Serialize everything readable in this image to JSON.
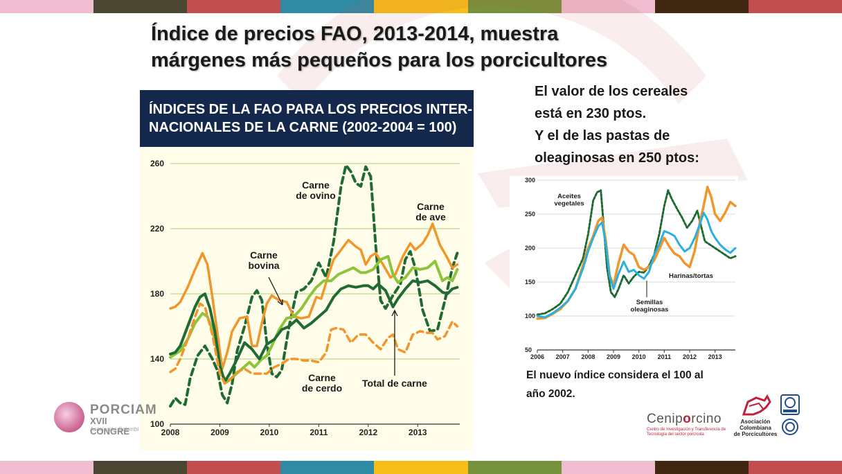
{
  "slide": {
    "title_line1": "Índice de precios FAO, 2013-2014, muestra",
    "title_line2": "márgenes más pequeños para los porcicultores",
    "side_text": [
      "El valor de los cereales",
      "está en 230 ptos.",
      "Y el de las pastas de",
      "oleaginosas en 250 ptos:"
    ],
    "note_line1": "El nuevo índice considera el 100 al",
    "note_line2": "año 2002.",
    "stripe_colors": [
      "#efbdd0",
      "#4b4732",
      "#c24e50",
      "#2f8ba3",
      "#f7be1a",
      "#76923c",
      "#efbdd0",
      "#3f2712",
      "#c24e50"
    ],
    "logos": {
      "porciamer_name": "PORCIAM",
      "porciamer_sub1": "XVII CONGRE",
      "porciamer_sub2": "Asociación Colombi",
      "ceniporcino_prefix": "Cenip",
      "ceniporcino_dot": "o",
      "ceniporcino_suffix": "rcino",
      "ceniporcino_sub": "Centro de Investigación y Transferencia de Tecnología del sector porcícola",
      "acp_line1": "Asociación",
      "acp_line2": "Colombiana",
      "acp_line3": "de Porcicultores"
    }
  },
  "chart_data": [
    {
      "type": "line",
      "title": "ÍNDICES DE LA FAO PARA LOS PRECIOS INTERNACIONALES DE LA CARNE (2002-2004 = 100)",
      "title_lines": [
        "ÍNDICES DE LA FAO PARA LOS PRECIOS INTER-",
        "NACIONALES DE LA CARNE (2002-2004 = 100)"
      ],
      "xlim": [
        2008,
        2013.85
      ],
      "ylim": [
        100,
        260
      ],
      "xticks": [
        "2008",
        "2009",
        "2010",
        "2011",
        "2012",
        "2013"
      ],
      "yticks": [
        100,
        140,
        180,
        220,
        260
      ],
      "grid": true,
      "colors": {
        "ovino": "#1f6b33",
        "ave": "#f0962a",
        "bovina": "#8cc43c",
        "total": "#1f6b33",
        "cerdo": "#f0962a"
      },
      "series": [
        {
          "name": "Carne de ovino",
          "label_lines": [
            "Carne",
            "de ovino"
          ],
          "style": "dashed-dark-green",
          "x": [
            2008.0,
            2008.1,
            2008.2,
            2008.3,
            2008.4,
            2008.55,
            2008.7,
            2008.85,
            2008.95,
            2009.05,
            2009.15,
            2009.25,
            2009.35,
            2009.5,
            2009.65,
            2009.75,
            2009.85,
            2009.95,
            2010.05,
            2010.15,
            2010.25,
            2010.4,
            2010.55,
            2010.7,
            2010.85,
            2011.0,
            2011.15,
            2011.3,
            2011.45,
            2011.55,
            2011.65,
            2011.75,
            2011.85,
            2011.95,
            2012.05,
            2012.15,
            2012.25,
            2012.35,
            2012.5,
            2012.65,
            2012.75,
            2012.85,
            2012.95,
            2013.1,
            2013.25,
            2013.4,
            2013.55,
            2013.7,
            2013.8
          ],
          "y": [
            111,
            116,
            113,
            112,
            128,
            142,
            148,
            140,
            133,
            118,
            113,
            125,
            145,
            160,
            178,
            182,
            176,
            150,
            131,
            129,
            133,
            160,
            181,
            183,
            188,
            199,
            190,
            212,
            246,
            259,
            255,
            248,
            246,
            258,
            252,
            210,
            176,
            171,
            179,
            186,
            201,
            206,
            196,
            170,
            157,
            158,
            176,
            196,
            205
          ]
        },
        {
          "name": "Carne de ave",
          "label_lines": [
            "Carne",
            "de ave"
          ],
          "style": "solid-orange",
          "x": [
            2008.0,
            2008.1,
            2008.2,
            2008.35,
            2008.5,
            2008.65,
            2008.75,
            2008.85,
            2008.95,
            2009.05,
            2009.15,
            2009.25,
            2009.4,
            2009.55,
            2009.65,
            2009.75,
            2009.85,
            2009.95,
            2010.05,
            2010.2,
            2010.35,
            2010.5,
            2010.65,
            2010.8,
            2010.95,
            2011.05,
            2011.2,
            2011.3,
            2011.45,
            2011.6,
            2011.75,
            2011.85,
            2011.95,
            2012.05,
            2012.15,
            2012.3,
            2012.45,
            2012.55,
            2012.7,
            2012.85,
            2012.95,
            2013.1,
            2013.2,
            2013.3,
            2013.45,
            2013.6,
            2013.7,
            2013.8
          ],
          "y": [
            171,
            172,
            175,
            184,
            195,
            205,
            198,
            178,
            156,
            134,
            144,
            157,
            165,
            166,
            148,
            148,
            162,
            174,
            179,
            176,
            175,
            166,
            165,
            166,
            178,
            177,
            192,
            201,
            207,
            213,
            209,
            207,
            198,
            203,
            205,
            198,
            190,
            192,
            203,
            211,
            207,
            211,
            216,
            223,
            210,
            202,
            196,
            198
          ]
        },
        {
          "name": "Carne bovina",
          "label_lines": [
            "Carne",
            "bovina"
          ],
          "style": "solid-light-green",
          "x": [
            2008.0,
            2008.1,
            2008.2,
            2008.35,
            2008.5,
            2008.65,
            2008.75,
            2008.85,
            2008.95,
            2009.05,
            2009.15,
            2009.3,
            2009.45,
            2009.6,
            2009.7,
            2009.85,
            2009.95,
            2010.05,
            2010.2,
            2010.35,
            2010.5,
            2010.65,
            2010.8,
            2010.95,
            2011.1,
            2011.25,
            2011.4,
            2011.55,
            2011.7,
            2011.85,
            2011.95,
            2012.1,
            2012.25,
            2012.4,
            2012.5,
            2012.6,
            2012.75,
            2012.9,
            2013.05,
            2013.2,
            2013.35,
            2013.5,
            2013.6,
            2013.7,
            2013.8
          ],
          "y": [
            141,
            143,
            145,
            152,
            162,
            168,
            166,
            158,
            145,
            130,
            126,
            130,
            134,
            138,
            135,
            140,
            142,
            148,
            158,
            165,
            166,
            171,
            178,
            184,
            188,
            188,
            192,
            194,
            196,
            193,
            193,
            195,
            201,
            203,
            192,
            187,
            190,
            196,
            195,
            196,
            200,
            188,
            190,
            188,
            195
          ]
        },
        {
          "name": "Total de carne",
          "label_lines": [
            "Total de carne"
          ],
          "style": "solid-dark-green",
          "x": [
            2008.0,
            2008.1,
            2008.2,
            2008.35,
            2008.5,
            2008.6,
            2008.7,
            2008.8,
            2008.9,
            2009.0,
            2009.1,
            2009.2,
            2009.35,
            2009.5,
            2009.65,
            2009.8,
            2009.95,
            2010.1,
            2010.25,
            2010.4,
            2010.55,
            2010.7,
            2010.85,
            2011.0,
            2011.15,
            2011.3,
            2011.45,
            2011.6,
            2011.75,
            2011.9,
            2012.0,
            2012.1,
            2012.2,
            2012.35,
            2012.5,
            2012.6,
            2012.75,
            2012.9,
            2013.05,
            2013.2,
            2013.35,
            2013.5,
            2013.6,
            2013.7,
            2013.8
          ],
          "y": [
            143,
            144,
            148,
            160,
            172,
            178,
            180,
            171,
            157,
            136,
            126,
            131,
            140,
            150,
            146,
            140,
            149,
            152,
            158,
            160,
            164,
            159,
            162,
            166,
            170,
            178,
            183,
            185,
            184,
            185,
            185,
            183,
            186,
            182,
            172,
            177,
            183,
            188,
            187,
            188,
            185,
            181,
            180,
            183,
            184
          ]
        },
        {
          "name": "Carne de cerdo",
          "label_lines": [
            "Carne",
            "de cerdo"
          ],
          "style": "dashed-orange",
          "x": [
            2008.0,
            2008.1,
            2008.2,
            2008.35,
            2008.5,
            2008.6,
            2008.7,
            2008.85,
            2009.0,
            2009.1,
            2009.2,
            2009.35,
            2009.5,
            2009.65,
            2009.8,
            2009.95,
            2010.1,
            2010.25,
            2010.4,
            2010.55,
            2010.7,
            2010.85,
            2011.0,
            2011.15,
            2011.25,
            2011.35,
            2011.5,
            2011.65,
            2011.8,
            2011.95,
            2012.1,
            2012.25,
            2012.4,
            2012.5,
            2012.6,
            2012.75,
            2012.9,
            2013.05,
            2013.2,
            2013.3,
            2013.4,
            2013.55,
            2013.7,
            2013.8
          ],
          "y": [
            132,
            134,
            140,
            152,
            166,
            174,
            172,
            155,
            131,
            125,
            127,
            132,
            134,
            131,
            131,
            131,
            135,
            137,
            140,
            140,
            139,
            139,
            138,
            144,
            158,
            159,
            158,
            150,
            155,
            155,
            150,
            146,
            153,
            155,
            146,
            144,
            155,
            157,
            156,
            156,
            152,
            154,
            163,
            160
          ]
        }
      ]
    },
    {
      "type": "line",
      "title": "",
      "xlim": [
        2006,
        2013.8
      ],
      "ylim": [
        50,
        300
      ],
      "xticks": [
        "2006",
        "2007",
        "2008",
        "2009",
        "2010",
        "2011",
        "2012",
        "2013"
      ],
      "yticks": [
        50,
        100,
        150,
        200,
        250,
        300
      ],
      "grid": true,
      "colors": {
        "aceites": "#1f6b33",
        "harinas": "#f0962a",
        "semillas": "#2ab0e0"
      },
      "series": [
        {
          "name": "Aceites vegetales",
          "label_lines": [
            "Aceites",
            "vegetales"
          ],
          "style": "dotted-dark-green",
          "x": [
            2006.0,
            2006.3,
            2006.6,
            2006.9,
            2007.2,
            2007.5,
            2007.8,
            2008.0,
            2008.2,
            2008.35,
            2008.5,
            2008.6,
            2008.75,
            2008.9,
            2009.05,
            2009.2,
            2009.4,
            2009.6,
            2009.8,
            2010.0,
            2010.2,
            2010.4,
            2010.6,
            2010.8,
            2011.0,
            2011.15,
            2011.3,
            2011.5,
            2011.7,
            2011.9,
            2012.1,
            2012.3,
            2012.5,
            2012.6,
            2012.8,
            2013.0,
            2013.2,
            2013.4,
            2013.6,
            2013.8
          ],
          "y": [
            102,
            104,
            110,
            118,
            135,
            160,
            185,
            220,
            270,
            282,
            285,
            240,
            170,
            135,
            128,
            140,
            160,
            148,
            158,
            165,
            164,
            174,
            190,
            220,
            262,
            285,
            272,
            258,
            245,
            230,
            240,
            255,
            225,
            210,
            205,
            200,
            195,
            190,
            185,
            188
          ]
        },
        {
          "name": "Harinas/tortas",
          "label_lines": [
            "Harinas/tortas"
          ],
          "style": "solid-orange",
          "x": [
            2006.0,
            2006.3,
            2006.6,
            2006.9,
            2007.2,
            2007.5,
            2007.8,
            2008.0,
            2008.2,
            2008.4,
            2008.55,
            2008.7,
            2008.85,
            2009.0,
            2009.2,
            2009.4,
            2009.6,
            2009.8,
            2010.0,
            2010.2,
            2010.4,
            2010.6,
            2010.8,
            2011.0,
            2011.2,
            2011.4,
            2011.6,
            2011.8,
            2012.0,
            2012.2,
            2012.4,
            2012.55,
            2012.7,
            2012.85,
            2013.0,
            2013.2,
            2013.4,
            2013.6,
            2013.8
          ],
          "y": [
            96,
            97,
            103,
            110,
            122,
            140,
            175,
            200,
            218,
            240,
            245,
            210,
            160,
            145,
            178,
            205,
            195,
            190,
            172,
            168,
            172,
            182,
            198,
            215,
            202,
            192,
            188,
            178,
            172,
            196,
            238,
            262,
            290,
            275,
            250,
            240,
            252,
            268,
            262
          ]
        },
        {
          "name": "Semillas oleaginosas",
          "label_lines": [
            "Semillas",
            "oleaginosas"
          ],
          "style": "solid-blue",
          "x": [
            2006.0,
            2006.3,
            2006.6,
            2006.9,
            2007.2,
            2007.5,
            2007.8,
            2008.0,
            2008.2,
            2008.4,
            2008.55,
            2008.7,
            2008.85,
            2009.0,
            2009.2,
            2009.4,
            2009.6,
            2009.8,
            2010.0,
            2010.2,
            2010.4,
            2010.6,
            2010.8,
            2011.0,
            2011.2,
            2011.4,
            2011.6,
            2011.8,
            2012.0,
            2012.2,
            2012.4,
            2012.55,
            2012.7,
            2012.85,
            2013.0,
            2013.2,
            2013.4,
            2013.6,
            2013.8
          ],
          "y": [
            100,
            98,
            104,
            112,
            122,
            140,
            170,
            195,
            215,
            232,
            238,
            205,
            158,
            140,
            162,
            180,
            165,
            168,
            160,
            155,
            165,
            190,
            205,
            225,
            222,
            218,
            205,
            195,
            200,
            215,
            235,
            252,
            242,
            225,
            215,
            205,
            198,
            193,
            200
          ]
        }
      ]
    }
  ]
}
